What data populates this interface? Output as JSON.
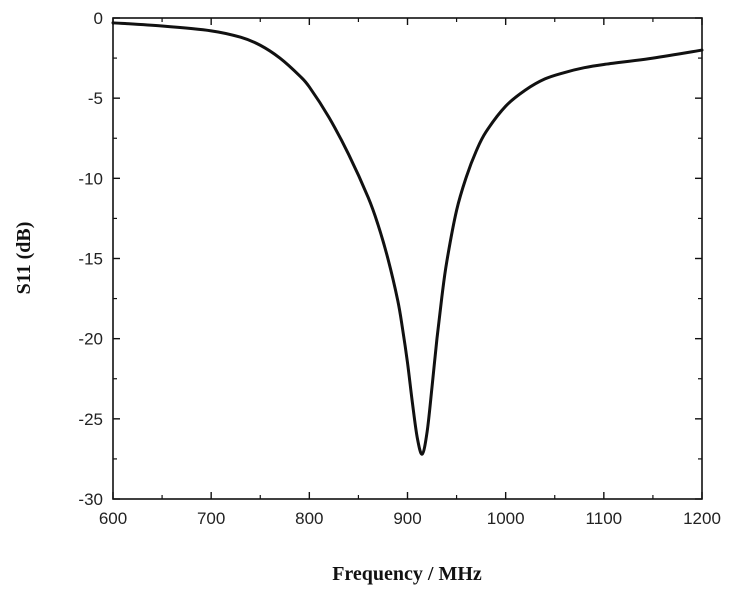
{
  "chart_data": {
    "type": "line",
    "xlabel": "Frequency / MHz",
    "ylabel": "S11 (dB)",
    "xlim": [
      600,
      1200
    ],
    "ylim": [
      -30,
      0
    ],
    "x_ticks": [
      600,
      700,
      800,
      900,
      1000,
      1100,
      1200
    ],
    "y_ticks": [
      0,
      -5,
      -10,
      -15,
      -20,
      -25,
      -30
    ],
    "grid": false,
    "legend": "none",
    "line_color": "#111111",
    "series": [
      {
        "x": [
          600,
          650,
          700,
          730,
          750,
          770,
          790,
          800,
          820,
          840,
          860,
          870,
          880,
          890,
          895,
          900,
          905,
          910,
          915,
          920,
          925,
          930,
          935,
          940,
          950,
          960,
          970,
          980,
          1000,
          1020,
          1040,
          1060,
          1080,
          1100,
          1150,
          1200
        ],
        "y": [
          -0.3,
          -0.5,
          -0.8,
          -1.2,
          -1.7,
          -2.5,
          -3.6,
          -4.3,
          -6.2,
          -8.5,
          -11.2,
          -12.9,
          -15.0,
          -17.6,
          -19.4,
          -21.5,
          -24.0,
          -26.2,
          -27.2,
          -25.8,
          -23.0,
          -20.0,
          -17.4,
          -15.2,
          -12.0,
          -9.9,
          -8.3,
          -7.1,
          -5.5,
          -4.5,
          -3.8,
          -3.4,
          -3.1,
          -2.9,
          -2.5,
          -2.0
        ]
      }
    ]
  }
}
